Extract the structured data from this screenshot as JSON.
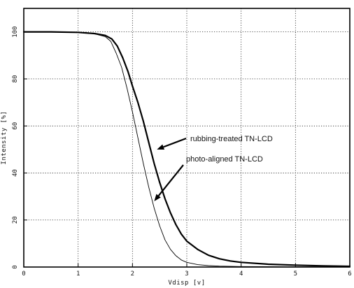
{
  "chart_data": {
    "type": "line",
    "title": "",
    "xlabel": "Vdisp [v]",
    "ylabel": "Intensity [%]",
    "xlim": [
      0,
      6
    ],
    "ylim": [
      0,
      110
    ],
    "xticks": [
      0,
      1,
      2,
      3,
      4,
      5,
      6
    ],
    "yticks": [
      0,
      20,
      40,
      60,
      80,
      100
    ],
    "grid": true,
    "series": [
      {
        "name": "rubbing-treated TN-LCD",
        "stroke": "#000000",
        "x": [
          0,
          0.5,
          1.0,
          1.3,
          1.5,
          1.62,
          1.72,
          1.82,
          1.92,
          2.0,
          2.1,
          2.2,
          2.3,
          2.4,
          2.5,
          2.6,
          2.7,
          2.8,
          2.9,
          3.0,
          3.2,
          3.4,
          3.6,
          3.8,
          4.0,
          4.5,
          5.0,
          5.5,
          6.0
        ],
        "y": [
          100,
          100,
          99.8,
          99.3,
          98.5,
          97,
          94,
          89,
          83,
          77,
          70,
          62,
          53,
          44,
          36,
          29,
          23,
          18,
          14,
          11,
          7.5,
          5,
          3.5,
          2.6,
          2,
          1.2,
          0.8,
          0.5,
          0.3
        ]
      },
      {
        "name": "photo-aligned TN-LCD",
        "stroke": "#000000",
        "x": [
          0,
          0.5,
          1.0,
          1.3,
          1.5,
          1.6,
          1.7,
          1.8,
          1.9,
          2.0,
          2.1,
          2.2,
          2.3,
          2.4,
          2.5,
          2.6,
          2.7,
          2.8,
          2.9,
          3.0,
          3.2,
          3.4,
          3.6,
          4.0,
          5.0,
          6.0
        ],
        "y": [
          100,
          100,
          99.7,
          99.2,
          98,
          96,
          91,
          85,
          76,
          66,
          55,
          44,
          34,
          25,
          17.5,
          11.5,
          7.5,
          4.8,
          3,
          2,
          1,
          0.6,
          0.4,
          0.2,
          0.1,
          0.1
        ]
      }
    ],
    "annotations": [
      {
        "text": "rubbing-treated TN-LCD",
        "arrow_to": {
          "x": 2.45,
          "y": 50
        }
      },
      {
        "text": "photo-aligned TN-LCD",
        "arrow_to": {
          "x": 2.4,
          "y": 28
        }
      }
    ]
  }
}
